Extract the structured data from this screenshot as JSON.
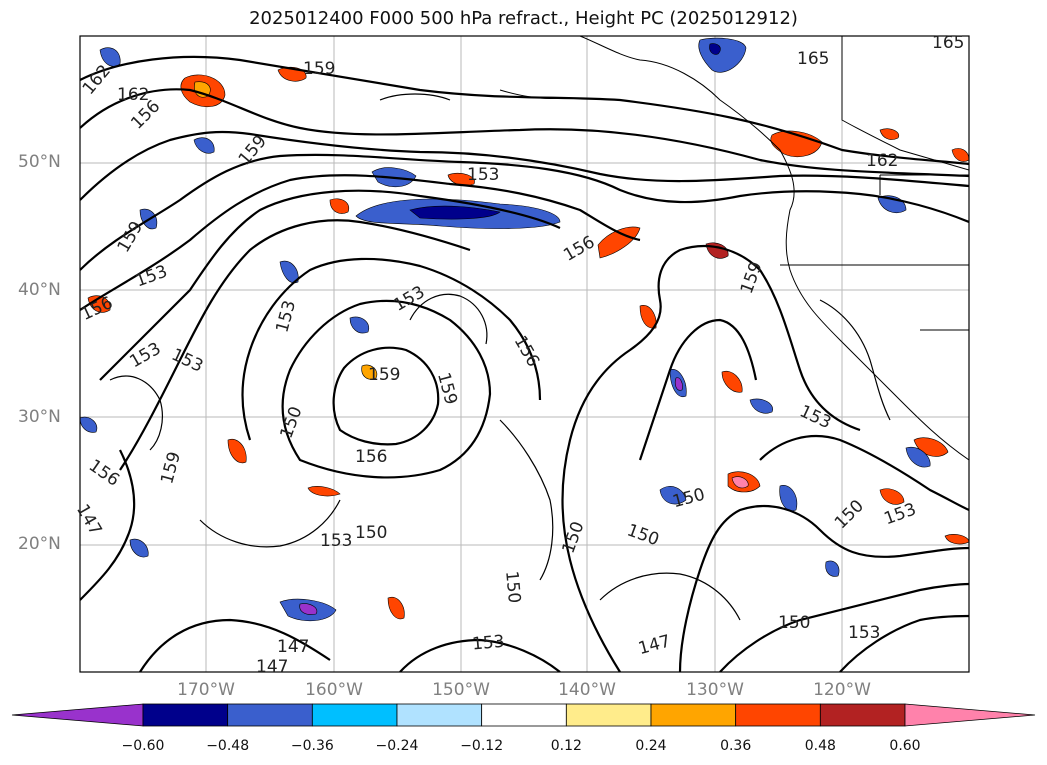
{
  "title": "2025012400 F000 500 hPa refract., Height PC (2025012912)",
  "lat_labels": [
    "50°N",
    "40°N",
    "30°N",
    "20°N"
  ],
  "lon_labels": [
    "170°W",
    "160°W",
    "150°W",
    "140°W",
    "130°W",
    "120°W"
  ],
  "contour_labels": [
    "162",
    "162",
    "156",
    "159",
    "159",
    "165",
    "165",
    "153",
    "162",
    "159",
    "153",
    "156",
    "156",
    "159",
    "153",
    "153",
    "153",
    "159",
    "159",
    "156",
    "150",
    "156",
    "153",
    "156",
    "159",
    "153",
    "150",
    "150",
    "150",
    "153",
    "147",
    "153",
    "147",
    "150",
    "153",
    "150",
    "150",
    "147",
    "147",
    "150",
    "153"
  ],
  "colorbar": {
    "colors": [
      "#9932cc",
      "#00008b",
      "#3a5fcd",
      "#00bfff",
      "#b0e2ff",
      "#ffffff",
      "#ffec8b",
      "#ffa500",
      "#ff4500",
      "#b22222",
      "#ff82ab"
    ],
    "ticks": [
      "−0.60",
      "−0.48",
      "−0.36",
      "−0.24",
      "−0.12",
      "0.12",
      "0.24",
      "0.36",
      "0.48",
      "0.60"
    ]
  }
}
